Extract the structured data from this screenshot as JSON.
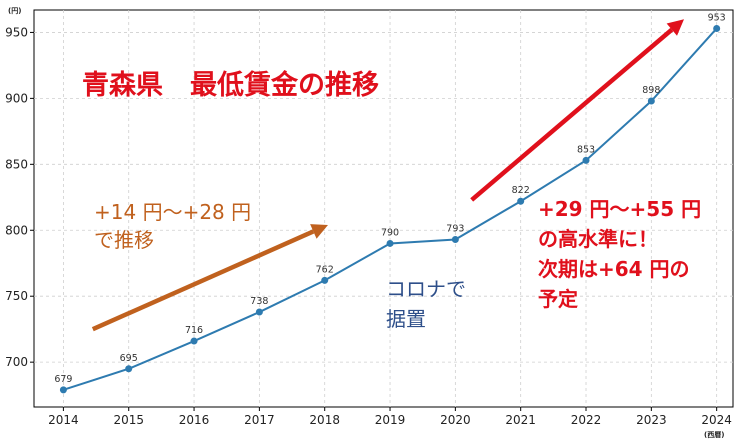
{
  "chart_data": {
    "type": "line",
    "title": "青森県　最低賃金の推移",
    "x": [
      2014,
      2015,
      2016,
      2017,
      2018,
      2019,
      2020,
      2021,
      2022,
      2023,
      2024
    ],
    "series": [
      {
        "values": [
          679,
          695,
          716,
          738,
          762,
          790,
          793,
          822,
          853,
          898,
          953
        ],
        "color": "#2e7bb0"
      }
    ],
    "y_ticks": [
      700,
      750,
      800,
      850,
      900,
      950
    ],
    "ylim": [
      666,
      967
    ],
    "xlim": [
      2013.55,
      2024.25
    ],
    "y_unit": "(円)",
    "x_unit": "(西暦)",
    "grid": true,
    "annotations": {
      "growth_early": {
        "lines": [
          "+14 円～+28 円",
          "で推移"
        ],
        "color": "#c0611e"
      },
      "corona": {
        "lines": [
          "コロナで",
          "据置"
        ],
        "color": "#2e4f8a"
      },
      "growth_recent": {
        "lines": [
          "+29 円～+55 円",
          "の高水準に！",
          "次期は+64 円の",
          "予定"
        ],
        "color": "#e0101c"
      }
    },
    "arrows": [
      {
        "from": [
          2014.45,
          725
        ],
        "to": [
          2018.05,
          804
        ],
        "color": "#c0611e"
      },
      {
        "from": [
          2020.25,
          823
        ],
        "to": [
          2023.5,
          960
        ],
        "color": "#e0101c"
      }
    ]
  }
}
